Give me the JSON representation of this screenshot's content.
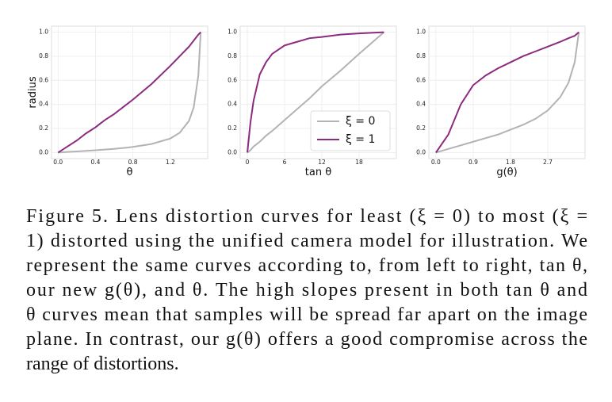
{
  "chart_data": [
    {
      "type": "line",
      "xlabel": "θ",
      "ylabel": "radius",
      "x": [
        0,
        0.1,
        0.2,
        0.3,
        0.4,
        0.5,
        0.6,
        0.65,
        0.7,
        0.75,
        0.8,
        1.0,
        1.2,
        1.3,
        1.4,
        1.45,
        1.5,
        1.525
      ],
      "series": [
        {
          "name": "ξ = 0",
          "color": "#b3b3b3",
          "values": [
            0,
            0.005,
            0.009,
            0.014,
            0.019,
            0.025,
            0.031,
            0.035,
            0.038,
            0.042,
            0.047,
            0.071,
            0.117,
            0.164,
            0.264,
            0.374,
            0.641,
            1.0
          ]
        },
        {
          "name": "ξ = 1",
          "color": "#8c2a80",
          "values": [
            0,
            0.05,
            0.1,
            0.16,
            0.21,
            0.27,
            0.32,
            0.35,
            0.38,
            0.41,
            0.44,
            0.57,
            0.72,
            0.8,
            0.88,
            0.93,
            0.98,
            1.0
          ]
        }
      ],
      "xlim": [
        -0.07,
        1.6
      ],
      "xticks": [
        {
          "value": 0,
          "label": "0.0"
        },
        0.4,
        0.8,
        1.2
      ],
      "ylim": [
        -0.05,
        1.05
      ],
      "yticks": [
        {
          "value": 0,
          "label": "0.0"
        },
        0.2,
        0.4,
        0.6,
        0.8,
        {
          "value": 1,
          "label": "1.0"
        }
      ],
      "grid": true
    },
    {
      "type": "line",
      "xlabel": "tan θ",
      "x": [
        0,
        0.5,
        1,
        2,
        3,
        4,
        6,
        8,
        10,
        12,
        15,
        18,
        22
      ],
      "series": [
        {
          "name": "ξ = 0",
          "color": "#b3b3b3",
          "values": [
            0,
            0.02,
            0.05,
            0.09,
            0.14,
            0.18,
            0.27,
            0.36,
            0.45,
            0.55,
            0.68,
            0.82,
            1.0
          ]
        },
        {
          "name": "ξ = 1",
          "color": "#8c2a80",
          "values": [
            0,
            0.25,
            0.43,
            0.65,
            0.75,
            0.82,
            0.89,
            0.92,
            0.95,
            0.96,
            0.98,
            0.99,
            1.0
          ]
        }
      ],
      "xlim": [
        -1.15,
        24
      ],
      "xticks": [
        0,
        6,
        12,
        18
      ],
      "ylim": [
        -0.05,
        1.05
      ],
      "yticks": [
        {
          "value": 0,
          "label": "0.0"
        },
        0.2,
        0.4,
        0.6,
        0.8,
        {
          "value": 1,
          "label": "1.0"
        }
      ],
      "grid": true,
      "legend": "lower right"
    },
    {
      "type": "line",
      "xlabel": "g(θ)",
      "x": [
        0,
        0.3,
        0.6,
        0.9,
        1.2,
        1.5,
        1.8,
        2.1,
        2.4,
        2.7,
        3.0,
        3.2,
        3.35,
        3.45
      ],
      "series": [
        {
          "name": "ξ = 0",
          "color": "#b3b3b3",
          "values": [
            0,
            0.03,
            0.06,
            0.09,
            0.12,
            0.15,
            0.19,
            0.23,
            0.28,
            0.35,
            0.46,
            0.58,
            0.75,
            1.0
          ]
        },
        {
          "name": "ξ = 1",
          "color": "#8c2a80",
          "values": [
            0,
            0.15,
            0.4,
            0.56,
            0.64,
            0.7,
            0.75,
            0.8,
            0.84,
            0.88,
            0.92,
            0.95,
            0.97,
            1.0
          ]
        }
      ],
      "xlim": [
        -0.17,
        3.6
      ],
      "xticks": [
        {
          "value": 0,
          "label": "0.0"
        },
        0.9,
        1.8,
        2.7
      ],
      "ylim": [
        -0.05,
        1.05
      ],
      "yticks": [
        {
          "value": 0,
          "label": "0.0"
        },
        0.2,
        0.4,
        0.6,
        0.8,
        {
          "value": 1,
          "label": "1.0"
        }
      ],
      "grid": true
    }
  ],
  "caption": {
    "lines": [
      "Figure 5.  Lens distortion curves for least (ξ = 0) to most (ξ =",
      "1) distorted using the unified camera model for illustration.  We",
      "represent the same curves according to, from left to right, tan θ,",
      "our new g(θ), and θ.  The high slopes present in both tan θ and",
      "θ curves mean that samples will be spread far apart on the image",
      "plane. In contrast, our g(θ) offers a good compromise across the",
      "range of distortions."
    ]
  }
}
